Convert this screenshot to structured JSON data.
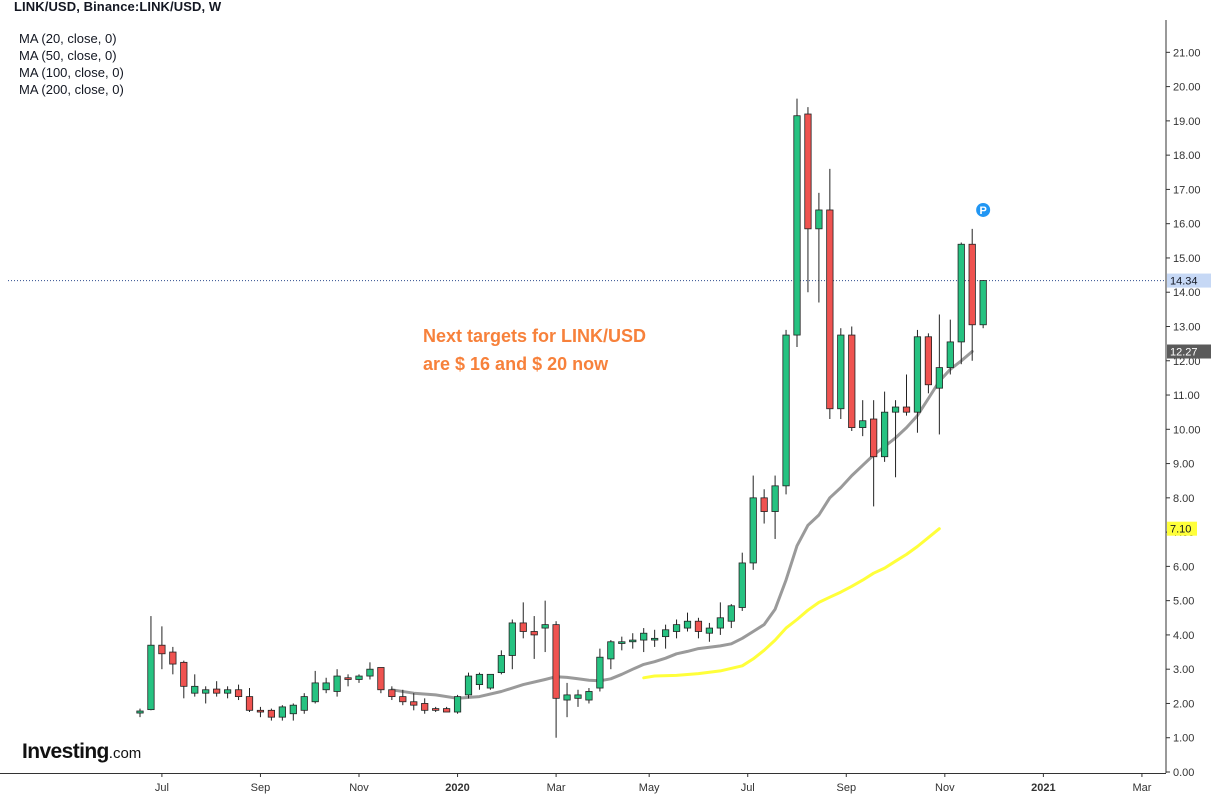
{
  "header": {
    "title": "LINK/USD, Binance:LINK/USD, W",
    "indicators": [
      "MA (20, close, 0)",
      "MA (50, close, 0)",
      "MA (100, close, 0)",
      "MA (200, close, 0)"
    ]
  },
  "annotation": {
    "line1": "Next targets for LINK/USD",
    "line2": "are $ 16 and $ 20 now"
  },
  "logo": {
    "name": "Investing",
    "suffix": ".com"
  },
  "colors": {
    "up": "#26c281",
    "down": "#ef5350",
    "ma20": "#9a9a9a",
    "ma50": "#ffff3a",
    "annotation": "#f7813b",
    "price_line": "#2f4c8f",
    "marker": "#2196f3"
  },
  "chart_data": {
    "type": "candlestick",
    "title": "LINK/USD, Binance:LINK/USD, W",
    "ylim": [
      0,
      21.8
    ],
    "y_ticks": [
      "0.00",
      "1.00",
      "2.00",
      "3.00",
      "4.00",
      "5.00",
      "6.00",
      "7.00",
      "8.00",
      "9.00",
      "10.00",
      "11.00",
      "12.00",
      "13.00",
      "14.00",
      "15.00",
      "16.00",
      "17.00",
      "18.00",
      "19.00",
      "20.00",
      "21.00"
    ],
    "x_ticks": [
      {
        "label": "Jul",
        "bold": false,
        "week": 2
      },
      {
        "label": "Sep",
        "bold": false,
        "week": 11
      },
      {
        "label": "Nov",
        "bold": false,
        "week": 20
      },
      {
        "label": "2020",
        "bold": true,
        "week": 29
      },
      {
        "label": "Mar",
        "bold": false,
        "week": 38
      },
      {
        "label": "May",
        "bold": false,
        "week": 46.5
      },
      {
        "label": "Jul",
        "bold": false,
        "week": 55.5
      },
      {
        "label": "Sep",
        "bold": false,
        "week": 64.5
      },
      {
        "label": "Nov",
        "bold": false,
        "week": 73.5
      },
      {
        "label": "2021",
        "bold": true,
        "week": 82.5
      },
      {
        "label": "Mar",
        "bold": false,
        "week": 91.5
      }
    ],
    "candles": [
      [
        1.72,
        1.85,
        1.6,
        1.78
      ],
      [
        1.82,
        4.55,
        1.8,
        3.7
      ],
      [
        3.7,
        4.25,
        3.0,
        3.45
      ],
      [
        3.5,
        3.65,
        2.85,
        3.15
      ],
      [
        3.2,
        3.25,
        2.15,
        2.5
      ],
      [
        2.3,
        2.85,
        2.2,
        2.5
      ],
      [
        2.3,
        2.5,
        2.0,
        2.4
      ],
      [
        2.42,
        2.65,
        2.2,
        2.3
      ],
      [
        2.3,
        2.5,
        2.15,
        2.4
      ],
      [
        2.4,
        2.55,
        2.1,
        2.2
      ],
      [
        2.2,
        2.45,
        1.75,
        1.8
      ],
      [
        1.8,
        1.9,
        1.6,
        1.75
      ],
      [
        1.8,
        1.85,
        1.5,
        1.6
      ],
      [
        1.6,
        1.95,
        1.5,
        1.9
      ],
      [
        1.7,
        2.0,
        1.5,
        1.95
      ],
      [
        1.8,
        2.3,
        1.7,
        2.2
      ],
      [
        2.05,
        2.95,
        2.0,
        2.6
      ],
      [
        2.4,
        2.75,
        2.3,
        2.6
      ],
      [
        2.35,
        3.0,
        2.2,
        2.8
      ],
      [
        2.75,
        2.85,
        2.5,
        2.7
      ],
      [
        2.7,
        2.85,
        2.6,
        2.8
      ],
      [
        2.8,
        3.2,
        2.7,
        3.0
      ],
      [
        3.05,
        3.05,
        2.3,
        2.4
      ],
      [
        2.4,
        2.5,
        2.1,
        2.2
      ],
      [
        2.2,
        2.4,
        1.95,
        2.05
      ],
      [
        2.05,
        2.3,
        1.8,
        1.95
      ],
      [
        2.0,
        2.15,
        1.7,
        1.8
      ],
      [
        1.85,
        1.9,
        1.75,
        1.8
      ],
      [
        1.85,
        1.9,
        1.75,
        1.75
      ],
      [
        1.75,
        2.25,
        1.7,
        2.2
      ],
      [
        2.25,
        2.9,
        2.15,
        2.8
      ],
      [
        2.55,
        2.9,
        2.4,
        2.85
      ],
      [
        2.45,
        2.85,
        2.4,
        2.85
      ],
      [
        2.9,
        3.55,
        2.85,
        3.4
      ],
      [
        3.4,
        4.45,
        3.0,
        4.35
      ],
      [
        4.35,
        4.95,
        3.9,
        4.1
      ],
      [
        4.1,
        4.55,
        3.3,
        4.0
      ],
      [
        4.2,
        5.0,
        3.5,
        4.3
      ],
      [
        4.3,
        4.4,
        1.0,
        2.15
      ],
      [
        2.1,
        2.6,
        1.6,
        2.25
      ],
      [
        2.15,
        2.4,
        1.9,
        2.25
      ],
      [
        2.1,
        2.45,
        2.0,
        2.35
      ],
      [
        2.45,
        3.6,
        2.35,
        3.35
      ],
      [
        3.3,
        3.85,
        3.0,
        3.8
      ],
      [
        3.75,
        3.95,
        3.55,
        3.8
      ],
      [
        3.8,
        4.05,
        3.6,
        3.85
      ],
      [
        3.85,
        4.2,
        3.5,
        4.05
      ],
      [
        3.85,
        4.15,
        3.65,
        3.9
      ],
      [
        3.95,
        4.3,
        3.6,
        4.15
      ],
      [
        4.1,
        4.45,
        3.9,
        4.3
      ],
      [
        4.2,
        4.65,
        4.1,
        4.4
      ],
      [
        4.4,
        4.5,
        3.9,
        4.1
      ],
      [
        4.05,
        4.35,
        3.8,
        4.2
      ],
      [
        4.2,
        4.95,
        4.0,
        4.5
      ],
      [
        4.4,
        4.9,
        4.2,
        4.85
      ],
      [
        4.8,
        6.4,
        4.7,
        6.1
      ],
      [
        6.1,
        8.65,
        5.9,
        8.0
      ],
      [
        8.0,
        8.25,
        7.25,
        7.6
      ],
      [
        7.6,
        8.65,
        6.8,
        8.35
      ],
      [
        8.35,
        12.9,
        8.1,
        12.75
      ],
      [
        12.75,
        19.65,
        12.4,
        19.15
      ],
      [
        19.2,
        19.4,
        14.0,
        15.85
      ],
      [
        15.85,
        16.9,
        13.7,
        16.4
      ],
      [
        16.4,
        17.6,
        10.3,
        10.6
      ],
      [
        10.6,
        12.95,
        10.3,
        12.75
      ],
      [
        12.75,
        13.0,
        9.95,
        10.05
      ],
      [
        10.05,
        10.85,
        9.8,
        10.25
      ],
      [
        10.3,
        10.85,
        7.75,
        9.2
      ],
      [
        9.2,
        11.1,
        9.05,
        10.5
      ],
      [
        10.5,
        10.85,
        8.6,
        10.65
      ],
      [
        10.65,
        11.6,
        10.4,
        10.5
      ],
      [
        10.5,
        12.9,
        9.9,
        12.7
      ],
      [
        12.7,
        12.8,
        11.05,
        11.3
      ],
      [
        11.2,
        13.35,
        9.85,
        11.8
      ],
      [
        11.8,
        13.2,
        11.6,
        12.55
      ],
      [
        12.55,
        15.45,
        11.9,
        15.4
      ],
      [
        15.4,
        15.85,
        12.0,
        13.05
      ],
      [
        13.05,
        14.35,
        12.95,
        14.34
      ]
    ],
    "ma20": [
      [
        23,
        2.4
      ],
      [
        25,
        2.3
      ],
      [
        27,
        2.25
      ],
      [
        29,
        2.15
      ],
      [
        31,
        2.2
      ],
      [
        33,
        2.35
      ],
      [
        35,
        2.55
      ],
      [
        37,
        2.7
      ],
      [
        38,
        2.78
      ],
      [
        39,
        2.76
      ],
      [
        40,
        2.72
      ],
      [
        41,
        2.68
      ],
      [
        42,
        2.66
      ],
      [
        43,
        2.72
      ],
      [
        44,
        2.85
      ],
      [
        45,
        3.0
      ],
      [
        46,
        3.14
      ],
      [
        47,
        3.22
      ],
      [
        48,
        3.32
      ],
      [
        49,
        3.45
      ],
      [
        50,
        3.52
      ],
      [
        51,
        3.6
      ],
      [
        52,
        3.64
      ],
      [
        53,
        3.68
      ],
      [
        54,
        3.74
      ],
      [
        55,
        3.9
      ],
      [
        56,
        4.1
      ],
      [
        57,
        4.3
      ],
      [
        58,
        4.75
      ],
      [
        59,
        5.6
      ],
      [
        60,
        6.6
      ],
      [
        61,
        7.2
      ],
      [
        62,
        7.5
      ],
      [
        63,
        8.0
      ],
      [
        64,
        8.3
      ],
      [
        65,
        8.65
      ],
      [
        66,
        8.95
      ],
      [
        67,
        9.25
      ],
      [
        68,
        9.5
      ],
      [
        69,
        9.75
      ],
      [
        70,
        10.05
      ],
      [
        71,
        10.4
      ],
      [
        72,
        10.9
      ],
      [
        73,
        11.4
      ],
      [
        74,
        11.75
      ],
      [
        75,
        12.0
      ],
      [
        76,
        12.27
      ]
    ],
    "ma50": [
      [
        46,
        2.75
      ],
      [
        47,
        2.8
      ],
      [
        49,
        2.82
      ],
      [
        51,
        2.87
      ],
      [
        53,
        2.95
      ],
      [
        55,
        3.1
      ],
      [
        56,
        3.3
      ],
      [
        57,
        3.55
      ],
      [
        58,
        3.85
      ],
      [
        59,
        4.2
      ],
      [
        60,
        4.45
      ],
      [
        61,
        4.72
      ],
      [
        62,
        4.95
      ],
      [
        63,
        5.1
      ],
      [
        64,
        5.25
      ],
      [
        65,
        5.42
      ],
      [
        66,
        5.6
      ],
      [
        67,
        5.8
      ],
      [
        68,
        5.95
      ],
      [
        69,
        6.15
      ],
      [
        70,
        6.35
      ],
      [
        71,
        6.58
      ],
      [
        72,
        6.84
      ],
      [
        73,
        7.1
      ]
    ],
    "current_price": "14.34",
    "price_labels": [
      {
        "label": "14.34",
        "value": 14.34,
        "style": "price"
      },
      {
        "label": "12.27",
        "value": 12.27,
        "style": "ma20"
      },
      {
        "label": "7.10",
        "value": 7.1,
        "style": "ma50"
      }
    ],
    "marker": {
      "label": "P",
      "week": 77,
      "value": 16.4
    }
  }
}
